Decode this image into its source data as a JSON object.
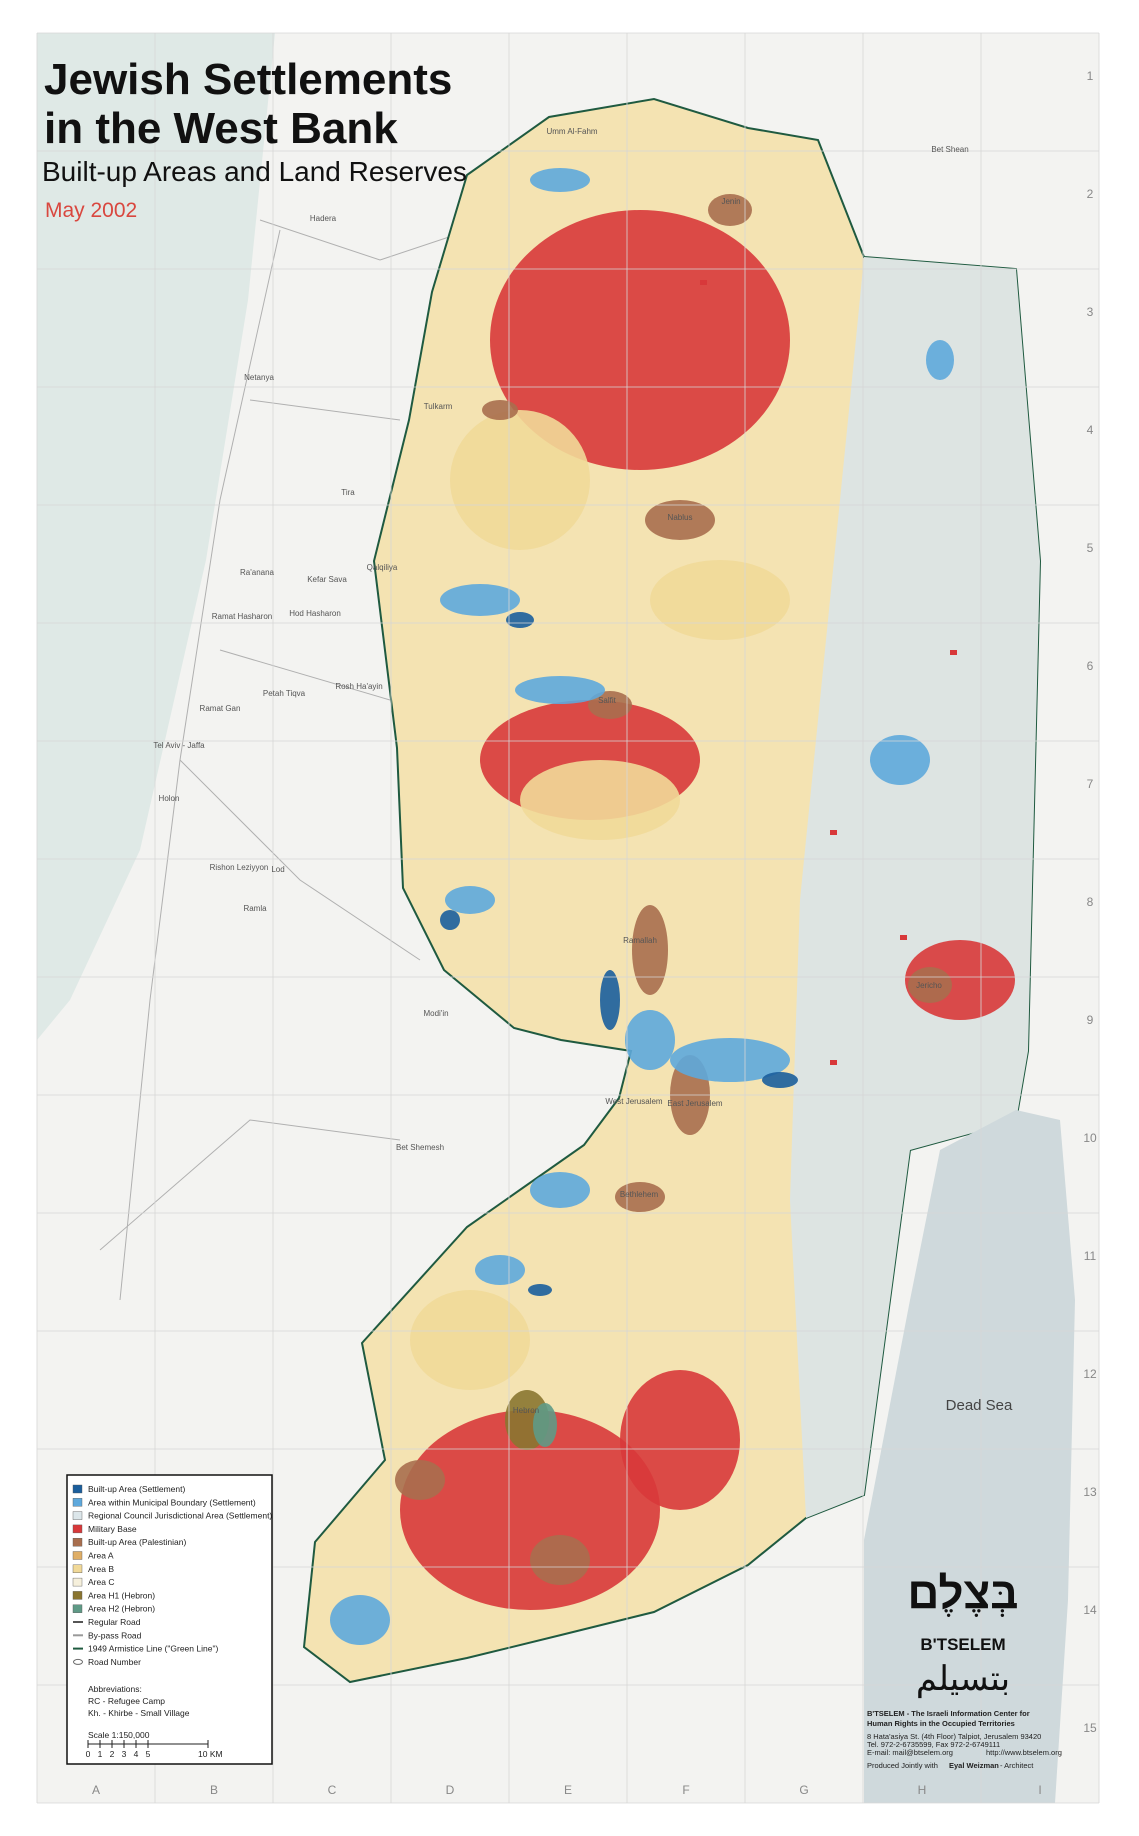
{
  "header": {
    "title_line1": "Jewish Settlements",
    "title_line2": "in the West Bank",
    "subtitle": "Built-up Areas and Land Reserves",
    "date": "May 2002"
  },
  "grid": {
    "columns": [
      "A",
      "B",
      "C",
      "D",
      "E",
      "F",
      "G",
      "H",
      "I"
    ],
    "rows": [
      "1",
      "2",
      "3",
      "4",
      "5",
      "6",
      "7",
      "8",
      "9",
      "10",
      "11",
      "12",
      "13",
      "14",
      "15"
    ]
  },
  "places": [
    "Hadera",
    "Netanya",
    "Tira",
    "Ra'anana",
    "Kefar Sava",
    "Ramat Hasharon",
    "Hod Hasharon",
    "Petah Tiqva",
    "Rosh Ha'ayin",
    "Ramat Gan",
    "Tel Aviv - Jaffa",
    "Holon",
    "Rishon Leziyyon",
    "Lod",
    "Ramla",
    "Umm Al-Fahm",
    "Bet Shean",
    "Jenin",
    "Tulkarm",
    "Qalqiliya",
    "Nablus",
    "Salfit",
    "Ramallah",
    "Jericho",
    "West Jerusalem",
    "East Jerusalem",
    "Bethlehem",
    "Hebron",
    "Bet Shemesh",
    "Modi'in"
  ],
  "sea_label": "Dead Sea",
  "legend": {
    "items": [
      {
        "label": "Built-up Area (Settlement)",
        "color": "#1b5e9c",
        "swatch": "rect"
      },
      {
        "label": "Area within Municipal Boundary (Settlement)",
        "color": "#5ea8dc",
        "swatch": "rect"
      },
      {
        "label": "Regional Council Jurisdictional Area (Settlement)",
        "color": "#dce6ea",
        "swatch": "rect"
      },
      {
        "label": "Military Base",
        "color": "#d8383a",
        "swatch": "rect"
      },
      {
        "label": "Built-up Area (Palestinian)",
        "color": "#a86e4e",
        "swatch": "rect"
      },
      {
        "label": "Area A",
        "color": "#dfae66",
        "swatch": "rect"
      },
      {
        "label": "Area B",
        "color": "#f1d998",
        "swatch": "rect"
      },
      {
        "label": "Area C",
        "color": "#f6f0dc",
        "swatch": "rect"
      },
      {
        "label": "Area H1 (Hebron)",
        "color": "#8a7530",
        "swatch": "rect"
      },
      {
        "label": "Area H2 (Hebron)",
        "color": "#5f9a86",
        "swatch": "rect"
      },
      {
        "label": "Regular Road",
        "color": "#555555",
        "swatch": "line"
      },
      {
        "label": "By-pass Road",
        "color": "#999999",
        "swatch": "line"
      },
      {
        "label": "1949 Armistice Line (\"Green Line\")",
        "color": "#1f5a40",
        "swatch": "line"
      },
      {
        "label": "Road Number",
        "color": "#666666",
        "swatch": "oval"
      }
    ]
  },
  "abbreviations": {
    "title": "Abbreviations:",
    "items": [
      "RC - Refugee Camp",
      "Kh. - Khirbe - Small Village"
    ]
  },
  "scale": {
    "label": "Scale 1:150,000",
    "ticks": [
      "0",
      "1",
      "2",
      "3",
      "4",
      "5"
    ],
    "end": "10 KM"
  },
  "credits": {
    "hebrew": "בְּצֶלֶם",
    "latin": "B'TSELEM",
    "arabic": "بتسيلم",
    "org1": "B'TSELEM - The Israeli Information Center for",
    "org2": "Human Rights in the Occupied Territories",
    "address": "8 Hata'asiya St. (4th Floor) Talpiot, Jerusalem 93420",
    "phone": "Tel. 972-2-6735599, Fax 972-2-6749111",
    "email": "E-mail: mail@btselem.org",
    "web": "http://www.btselem.org",
    "produced": "Produced Jointly with",
    "architect": "Eyal Weizman",
    "role": "- Architect"
  }
}
